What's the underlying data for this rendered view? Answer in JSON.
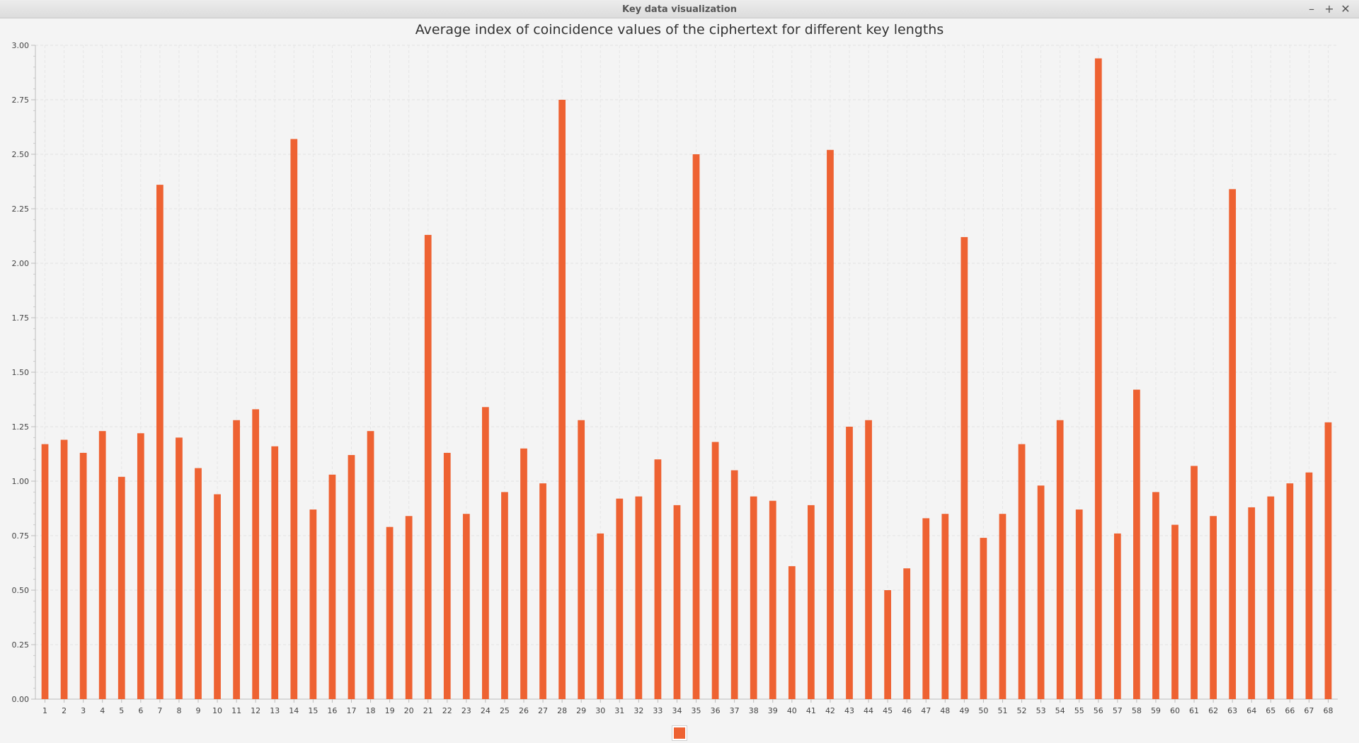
{
  "window": {
    "title": "Key data visualization",
    "minimize_glyph": "–",
    "maximize_glyph": "+",
    "close_glyph": "✕"
  },
  "chart_data": {
    "type": "bar",
    "title": "Average index of coincidence values of the ciphertext for different key lengths",
    "xlabel": "",
    "ylabel": "",
    "ylim": [
      0,
      3.0
    ],
    "y_ticks": [
      "0.00",
      "0.25",
      "0.50",
      "0.75",
      "1.00",
      "1.25",
      "1.50",
      "1.75",
      "2.00",
      "2.25",
      "2.50",
      "2.75",
      "3.00"
    ],
    "grid": true,
    "legend": "bottom-center",
    "color": "#ee6232",
    "categories": [
      "1",
      "2",
      "3",
      "4",
      "5",
      "6",
      "7",
      "8",
      "9",
      "10",
      "11",
      "12",
      "13",
      "14",
      "15",
      "16",
      "17",
      "18",
      "19",
      "20",
      "21",
      "22",
      "23",
      "24",
      "25",
      "26",
      "27",
      "28",
      "29",
      "30",
      "31",
      "32",
      "33",
      "34",
      "35",
      "36",
      "37",
      "38",
      "39",
      "40",
      "41",
      "42",
      "43",
      "44",
      "45",
      "46",
      "47",
      "48",
      "49",
      "50",
      "51",
      "52",
      "53",
      "54",
      "55",
      "56",
      "57",
      "58",
      "59",
      "60",
      "61",
      "62",
      "63",
      "64",
      "65",
      "66",
      "67",
      "68"
    ],
    "series": [
      {
        "values": [
          1.17,
          1.19,
          1.13,
          1.23,
          1.02,
          1.22,
          2.36,
          1.2,
          1.06,
          0.94,
          1.28,
          1.33,
          1.16,
          2.57,
          0.87,
          1.03,
          1.12,
          1.23,
          0.79,
          0.84,
          2.13,
          1.13,
          0.85,
          1.34,
          0.95,
          1.15,
          0.99,
          2.75,
          1.28,
          0.76,
          0.92,
          0.93,
          1.1,
          0.89,
          2.5,
          1.18,
          1.05,
          0.93,
          0.91,
          0.61,
          0.89,
          2.52,
          1.25,
          1.28,
          0.5,
          0.6,
          0.83,
          0.85,
          2.12,
          0.74,
          0.85,
          1.17,
          0.98,
          1.28,
          0.87,
          2.94,
          0.76,
          1.42,
          0.95,
          0.8,
          1.07,
          0.84,
          2.34,
          0.88,
          0.93,
          0.99,
          1.04,
          1.27
        ]
      }
    ]
  }
}
